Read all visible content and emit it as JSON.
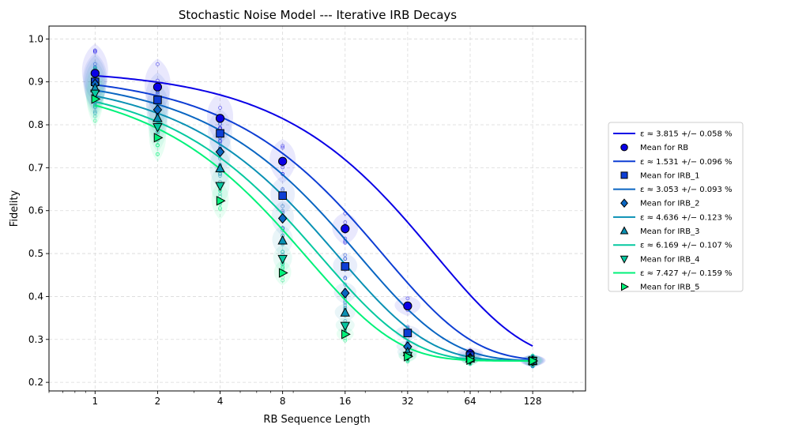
{
  "chart_data": {
    "type": "line",
    "title": "Stochastic Noise Model --- Iterative IRB Decays",
    "xlabel": "RB Sequence Length",
    "ylabel": "Fidelity",
    "xscale": "log2",
    "x": [
      1,
      2,
      4,
      8,
      16,
      32,
      64,
      128
    ],
    "x_tick_labels": [
      "1",
      "2",
      "4",
      "8",
      "16",
      "32",
      "64",
      "128"
    ],
    "xlim": [
      0.6,
      230
    ],
    "ylim": [
      0.18,
      1.03
    ],
    "y_ticks": [
      0.2,
      0.3,
      0.4,
      0.5,
      0.6,
      0.7,
      0.8,
      0.9,
      1.0
    ],
    "y_tick_labels": [
      "0.2",
      "0.3",
      "0.4",
      "0.5",
      "0.6",
      "0.7",
      "0.8",
      "0.9",
      "1.0"
    ],
    "grid": true,
    "legend_position": "right-outside",
    "series": [
      {
        "fit_label": "ε ≈ 3.815 +/− 0.058 %",
        "name": "Mean for RB",
        "color": "#0a00e6",
        "marker": "circle",
        "values": [
          0.92,
          0.888,
          0.815,
          0.715,
          0.558,
          0.378,
          0.267,
          0.25
        ],
        "fit": {
          "A": 0.68,
          "p": 0.977,
          "B": 0.25
        }
      },
      {
        "fit_label": "ε ≈ 1.531 +/− 0.096 %",
        "name": "Mean for IRB_1",
        "color": "#0e3ed4",
        "marker": "square",
        "values": [
          0.9,
          0.858,
          0.78,
          0.635,
          0.47,
          0.315,
          0.262,
          0.25
        ],
        "fit": {
          "A": 0.67,
          "p": 0.96,
          "B": 0.25
        }
      },
      {
        "fit_label": "ε ≈ 3.053 +/− 0.093 %",
        "name": "Mean for IRB_2",
        "color": "#0a66c2",
        "marker": "diamond",
        "values": [
          0.895,
          0.835,
          0.737,
          0.582,
          0.408,
          0.283,
          0.257,
          0.25
        ],
        "fit": {
          "A": 0.665,
          "p": 0.948,
          "B": 0.25
        }
      },
      {
        "fit_label": "ε ≈ 4.636 +/− 0.123 %",
        "name": "Mean for IRB_3",
        "color": "#0a91b4",
        "marker": "triangle-up",
        "values": [
          0.885,
          0.815,
          0.698,
          0.53,
          0.362,
          0.27,
          0.255,
          0.25
        ],
        "fit": {
          "A": 0.66,
          "p": 0.935,
          "B": 0.25
        }
      },
      {
        "fit_label": "ε ≈ 6.169 +/− 0.107 %",
        "name": "Mean for IRB_4",
        "color": "#06c8a0",
        "marker": "triangle-down",
        "values": [
          0.873,
          0.795,
          0.658,
          0.488,
          0.332,
          0.262,
          0.253,
          0.25
        ],
        "fit": {
          "A": 0.655,
          "p": 0.922,
          "B": 0.25
        }
      },
      {
        "fit_label": "ε ≈ 7.427 +/− 0.159 %",
        "name": "Mean for IRB_5",
        "color": "#00f27a",
        "marker": "triangle-right",
        "values": [
          0.86,
          0.77,
          0.623,
          0.455,
          0.312,
          0.26,
          0.252,
          0.25
        ],
        "fit": {
          "A": 0.655,
          "p": 0.909,
          "B": 0.25
        }
      }
    ]
  }
}
